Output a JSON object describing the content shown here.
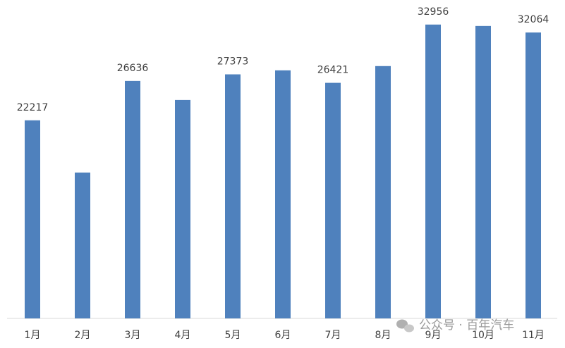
{
  "chart_data": {
    "type": "bar",
    "categories": [
      "1月",
      "2月",
      "3月",
      "4月",
      "5月",
      "6月",
      "7月",
      "8月",
      "9月",
      "10月",
      "11月"
    ],
    "values": [
      22217,
      16360,
      26636,
      24500,
      27373,
      27820,
      26421,
      28300,
      32956,
      32800,
      32064
    ],
    "value_labels": [
      "22217",
      null,
      "26636",
      null,
      "27373",
      null,
      "26421",
      null,
      "32956",
      null,
      "32064"
    ],
    "color": "#4f81bd",
    "ylim": [
      0,
      35000
    ],
    "watermark": "公众号 · 百年汽车"
  }
}
